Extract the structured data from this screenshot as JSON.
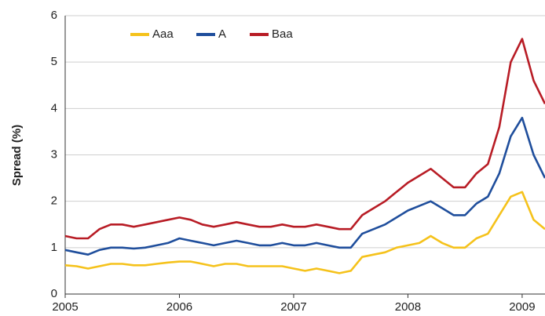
{
  "chart_data": {
    "type": "line",
    "y_label": "Spread (%)",
    "x": [
      2005.0,
      2005.1,
      2005.2,
      2005.3,
      2005.4,
      2005.5,
      2005.6,
      2005.7,
      2005.8,
      2005.9,
      2006.0,
      2006.1,
      2006.2,
      2006.3,
      2006.4,
      2006.5,
      2006.6,
      2006.7,
      2006.8,
      2006.9,
      2007.0,
      2007.1,
      2007.2,
      2007.3,
      2007.4,
      2007.5,
      2007.6,
      2007.7,
      2007.8,
      2007.9,
      2008.0,
      2008.1,
      2008.2,
      2008.3,
      2008.4,
      2008.5,
      2008.6,
      2008.7,
      2008.8,
      2008.9,
      2009.0,
      2009.1,
      2009.2
    ],
    "series": [
      {
        "name": "Aaa",
        "color": "#f5c21b",
        "values": [
          0.62,
          0.6,
          0.55,
          0.6,
          0.65,
          0.65,
          0.62,
          0.62,
          0.65,
          0.68,
          0.7,
          0.7,
          0.65,
          0.6,
          0.65,
          0.65,
          0.6,
          0.6,
          0.6,
          0.6,
          0.55,
          0.5,
          0.55,
          0.5,
          0.45,
          0.5,
          0.8,
          0.85,
          0.9,
          1.0,
          1.05,
          1.1,
          1.25,
          1.1,
          1.0,
          1.0,
          1.2,
          1.3,
          1.7,
          2.1,
          2.2,
          1.6,
          1.4
        ]
      },
      {
        "name": "A",
        "color": "#1f4e9c",
        "values": [
          0.95,
          0.9,
          0.85,
          0.95,
          1.0,
          1.0,
          0.98,
          1.0,
          1.05,
          1.1,
          1.2,
          1.15,
          1.1,
          1.05,
          1.1,
          1.15,
          1.1,
          1.05,
          1.05,
          1.1,
          1.05,
          1.05,
          1.1,
          1.05,
          1.0,
          1.0,
          1.3,
          1.4,
          1.5,
          1.65,
          1.8,
          1.9,
          2.0,
          1.85,
          1.7,
          1.7,
          1.95,
          2.1,
          2.6,
          3.4,
          3.8,
          3.0,
          2.5
        ]
      },
      {
        "name": "Baa",
        "color": "#b81c25",
        "values": [
          1.25,
          1.2,
          1.2,
          1.4,
          1.5,
          1.5,
          1.45,
          1.5,
          1.55,
          1.6,
          1.65,
          1.6,
          1.5,
          1.45,
          1.5,
          1.55,
          1.5,
          1.45,
          1.45,
          1.5,
          1.45,
          1.45,
          1.5,
          1.45,
          1.4,
          1.4,
          1.7,
          1.85,
          2.0,
          2.2,
          2.4,
          2.55,
          2.7,
          2.5,
          2.3,
          2.3,
          2.6,
          2.8,
          3.6,
          5.0,
          5.5,
          4.6,
          4.1
        ]
      }
    ],
    "xlim": [
      2005,
      2009.2
    ],
    "xticks": [
      2005,
      2006,
      2007,
      2008,
      2009
    ],
    "ylim": [
      0,
      6
    ],
    "yticks": [
      0,
      1,
      2,
      3,
      4,
      5,
      6
    ],
    "grid": true
  }
}
